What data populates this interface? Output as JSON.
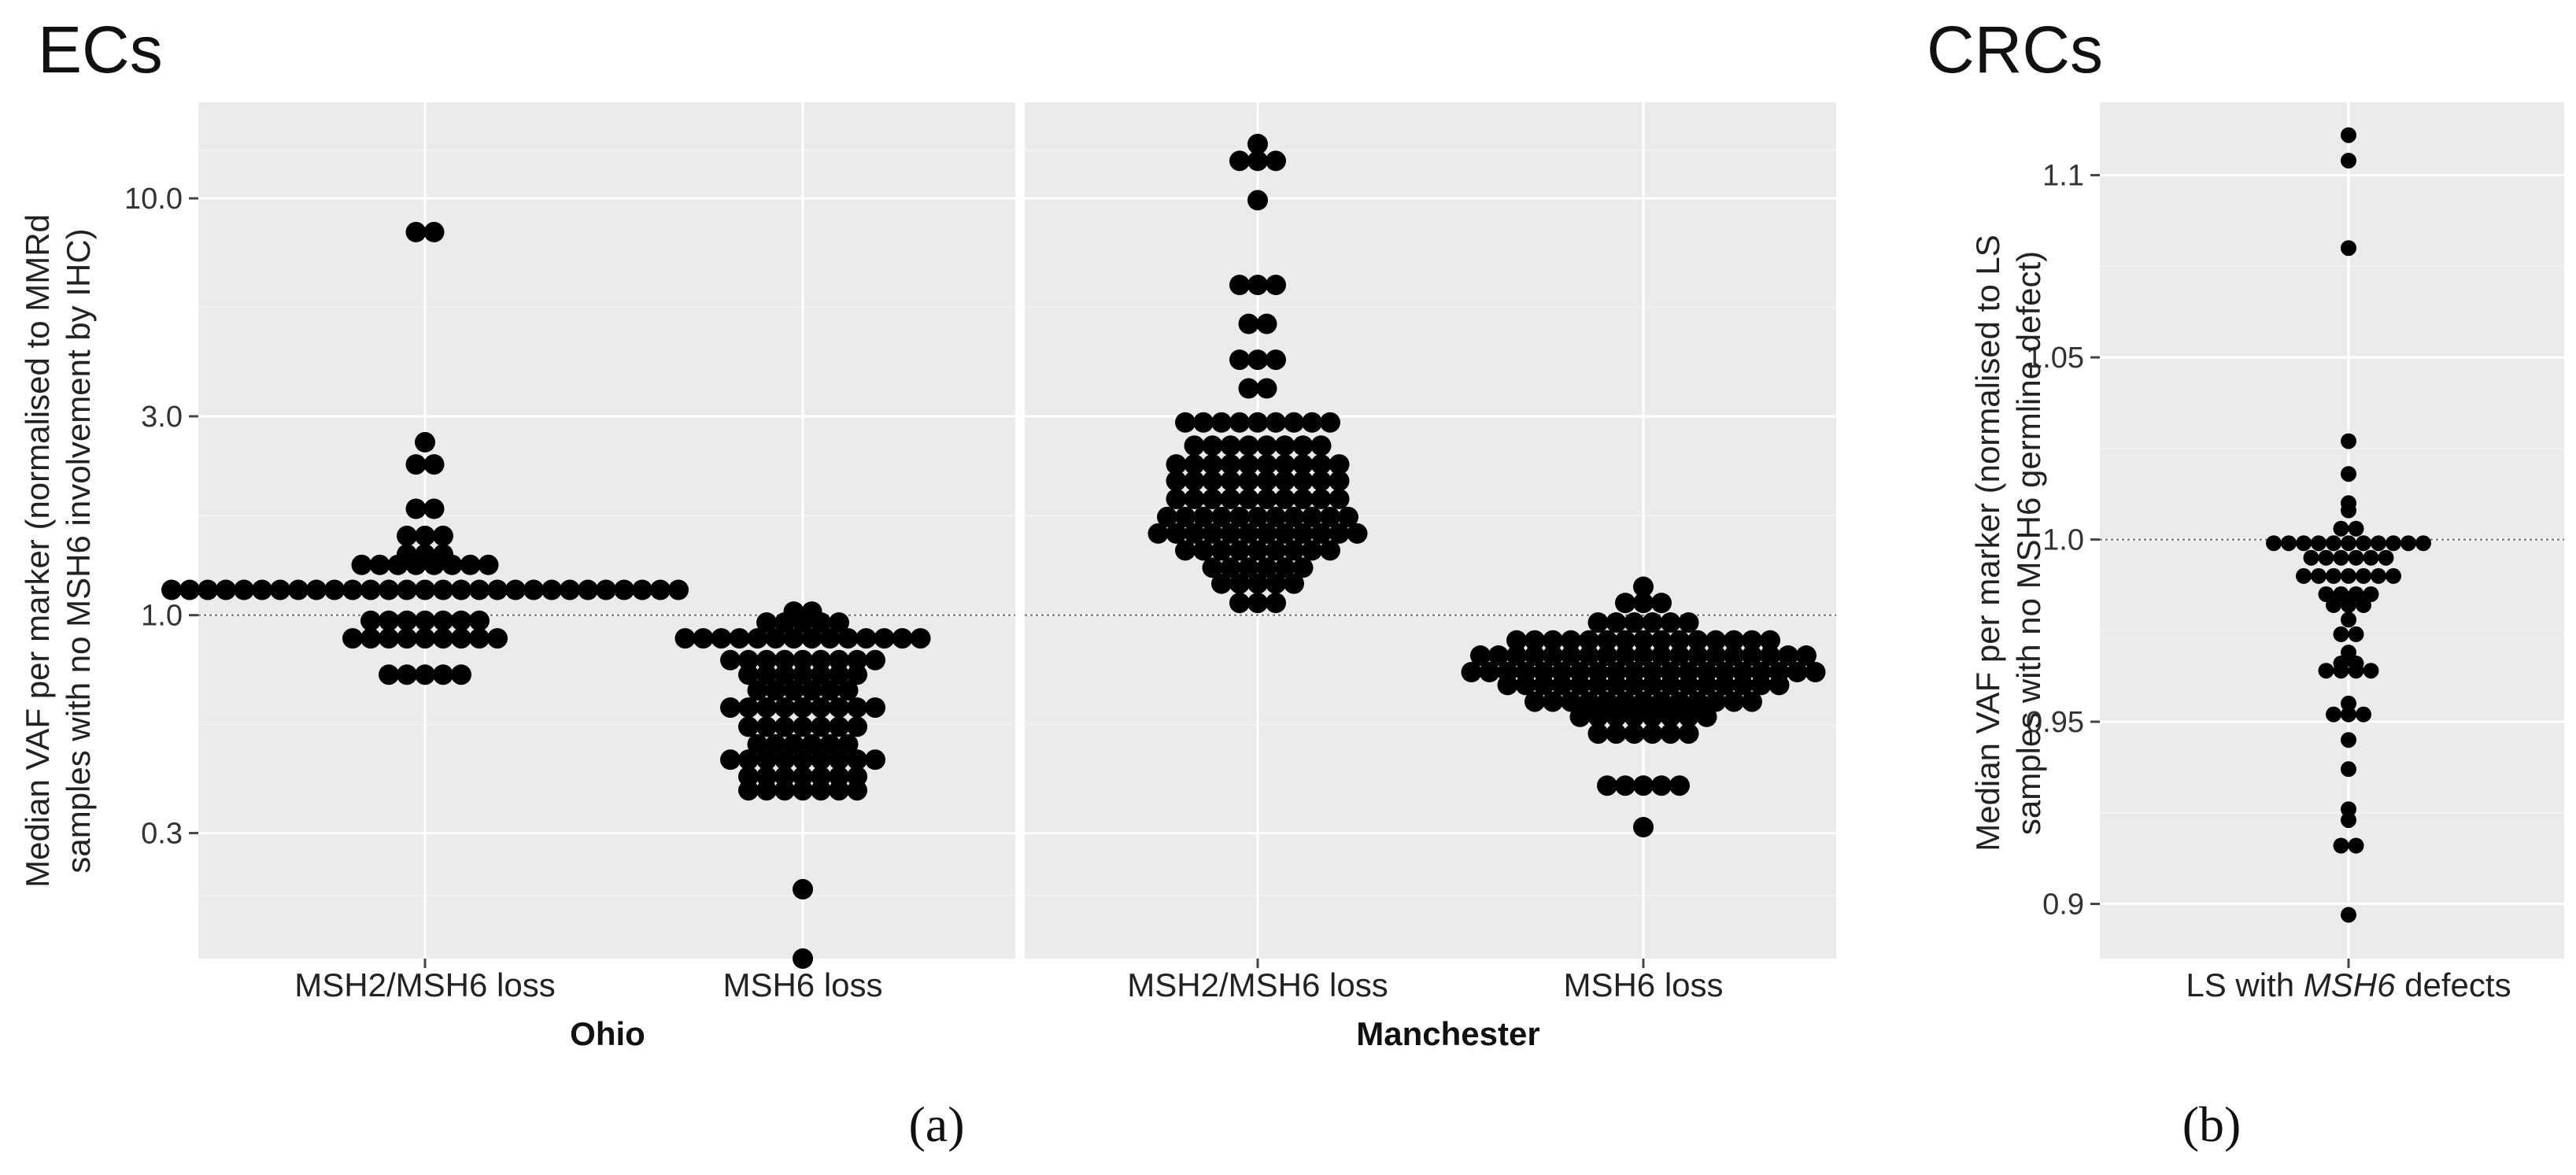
{
  "chart_data": [
    {
      "type": "scatter",
      "subtype": "beeswarm",
      "title": "ECs",
      "subfigure_label": "(a)",
      "ylabel_line1": "Median VAF per marker (normalised to MMRd",
      "ylabel_line2": "samples with no MSH6 involvement by IHC)",
      "y_scale": "log",
      "ylim": [
        0.15,
        17
      ],
      "y_ticks": [
        0.3,
        1.0,
        3.0,
        10.0
      ],
      "y_tick_labels": [
        "0.3",
        "1.0",
        "3.0",
        "10.0"
      ],
      "reference_line": 1.0,
      "grid": true,
      "facets": [
        {
          "name": "Ohio",
          "categories": [
            {
              "label": "MSH2/MSH6 loss",
              "values": [
                8.3,
                8.3,
                2.6,
                2.3,
                2.3,
                1.8,
                1.8,
                1.55,
                1.55,
                1.55,
                1.4,
                1.4,
                1.4,
                1.32,
                1.32,
                1.32,
                1.32,
                1.32,
                1.32,
                1.32,
                1.32,
                1.15,
                1.15,
                1.15,
                1.15,
                1.15,
                1.15,
                1.15,
                1.15,
                1.15,
                1.15,
                1.15,
                1.15,
                1.15,
                1.15,
                1.15,
                1.15,
                1.15,
                1.15,
                1.15,
                1.15,
                1.15,
                1.15,
                1.15,
                1.15,
                1.15,
                1.15,
                1.15,
                1.15,
                1.15,
                0.97,
                0.97,
                0.97,
                0.97,
                0.97,
                0.97,
                0.97,
                0.88,
                0.88,
                0.88,
                0.88,
                0.88,
                0.88,
                0.88,
                0.88,
                0.88,
                0.72,
                0.72,
                0.72,
                0.72,
                0.72
              ]
            },
            {
              "label": "MSH6 loss",
              "values": [
                1.02,
                1.02,
                0.96,
                0.96,
                0.96,
                0.96,
                0.96,
                0.88,
                0.88,
                0.88,
                0.88,
                0.88,
                0.88,
                0.88,
                0.88,
                0.88,
                0.88,
                0.88,
                0.88,
                0.88,
                0.88,
                0.78,
                0.78,
                0.78,
                0.78,
                0.78,
                0.78,
                0.78,
                0.78,
                0.78,
                0.72,
                0.72,
                0.72,
                0.72,
                0.72,
                0.72,
                0.72,
                0.66,
                0.66,
                0.66,
                0.66,
                0.66,
                0.66,
                0.6,
                0.6,
                0.6,
                0.6,
                0.6,
                0.6,
                0.6,
                0.6,
                0.6,
                0.54,
                0.54,
                0.54,
                0.54,
                0.54,
                0.54,
                0.54,
                0.49,
                0.49,
                0.49,
                0.49,
                0.49,
                0.49,
                0.45,
                0.45,
                0.45,
                0.45,
                0.45,
                0.45,
                0.45,
                0.45,
                0.45,
                0.41,
                0.41,
                0.41,
                0.41,
                0.41,
                0.41,
                0.41,
                0.38,
                0.38,
                0.38,
                0.38,
                0.38,
                0.38,
                0.38,
                0.22,
                0.15
              ]
            }
          ]
        },
        {
          "name": "Manchester",
          "categories": [
            {
              "label": "MSH2/MSH6 loss",
              "values": [
                13.5,
                12.3,
                12.3,
                12.3,
                9.9,
                6.2,
                6.2,
                6.2,
                5.0,
                5.0,
                4.1,
                4.1,
                4.1,
                3.5,
                3.5,
                2.9,
                2.9,
                2.9,
                2.9,
                2.9,
                2.9,
                2.9,
                2.9,
                2.9,
                2.55,
                2.55,
                2.55,
                2.55,
                2.55,
                2.55,
                2.55,
                2.55,
                2.3,
                2.3,
                2.3,
                2.3,
                2.3,
                2.3,
                2.3,
                2.3,
                2.3,
                2.3,
                2.1,
                2.1,
                2.1,
                2.1,
                2.1,
                2.1,
                2.1,
                2.1,
                2.1,
                2.1,
                1.9,
                1.9,
                1.9,
                1.9,
                1.9,
                1.9,
                1.9,
                1.9,
                1.9,
                1.9,
                1.72,
                1.72,
                1.72,
                1.72,
                1.72,
                1.72,
                1.72,
                1.72,
                1.72,
                1.72,
                1.72,
                1.57,
                1.57,
                1.57,
                1.57,
                1.57,
                1.57,
                1.57,
                1.57,
                1.57,
                1.57,
                1.57,
                1.57,
                1.43,
                1.43,
                1.43,
                1.43,
                1.43,
                1.43,
                1.43,
                1.43,
                1.43,
                1.3,
                1.3,
                1.3,
                1.3,
                1.3,
                1.3,
                1.19,
                1.19,
                1.19,
                1.19,
                1.19,
                1.07,
                1.07,
                1.07
              ]
            },
            {
              "label": "MSH6 loss",
              "values": [
                1.17,
                1.07,
                1.07,
                1.07,
                0.96,
                0.96,
                0.96,
                0.96,
                0.96,
                0.96,
                0.87,
                0.87,
                0.87,
                0.87,
                0.87,
                0.87,
                0.87,
                0.87,
                0.87,
                0.87,
                0.87,
                0.87,
                0.87,
                0.87,
                0.87,
                0.8,
                0.8,
                0.8,
                0.8,
                0.8,
                0.8,
                0.8,
                0.8,
                0.8,
                0.8,
                0.8,
                0.8,
                0.8,
                0.8,
                0.8,
                0.8,
                0.8,
                0.8,
                0.8,
                0.73,
                0.73,
                0.73,
                0.73,
                0.73,
                0.73,
                0.73,
                0.73,
                0.73,
                0.73,
                0.73,
                0.73,
                0.73,
                0.73,
                0.73,
                0.73,
                0.73,
                0.73,
                0.73,
                0.73,
                0.68,
                0.68,
                0.68,
                0.68,
                0.68,
                0.68,
                0.68,
                0.68,
                0.68,
                0.68,
                0.68,
                0.68,
                0.68,
                0.68,
                0.68,
                0.68,
                0.62,
                0.62,
                0.62,
                0.62,
                0.62,
                0.62,
                0.62,
                0.62,
                0.62,
                0.62,
                0.62,
                0.62,
                0.62,
                0.57,
                0.57,
                0.57,
                0.57,
                0.57,
                0.57,
                0.57,
                0.57,
                0.52,
                0.52,
                0.52,
                0.52,
                0.52,
                0.52,
                0.39,
                0.39,
                0.39,
                0.39,
                0.39,
                0.31
              ]
            }
          ]
        }
      ]
    },
    {
      "type": "scatter",
      "subtype": "beeswarm",
      "title": "CRCs",
      "subfigure_label": "(b)",
      "ylabel_line1": "Median VAF per marker (normalised to LS",
      "ylabel_line2": "samples with no MSH6 germline defect)",
      "y_scale": "linear",
      "ylim": [
        0.885,
        1.12
      ],
      "y_ticks": [
        0.9,
        0.95,
        1.0,
        1.05,
        1.1
      ],
      "y_tick_labels": [
        "0.9",
        "0.95",
        "1.0",
        "1.05",
        "1.1"
      ],
      "reference_line": 1.0,
      "grid": true,
      "categories": [
        {
          "label_prefix": "LS with ",
          "label_italic": "MSH6",
          "label_suffix": " defects",
          "values": [
            1.111,
            1.104,
            1.08,
            1.027,
            1.018,
            1.01,
            1.008,
            1.003,
            1.003,
            0.999,
            0.999,
            0.999,
            0.999,
            0.999,
            0.999,
            0.999,
            0.999,
            0.999,
            0.999,
            0.999,
            0.995,
            0.995,
            0.995,
            0.995,
            0.995,
            0.995,
            0.99,
            0.99,
            0.99,
            0.99,
            0.99,
            0.99,
            0.99,
            0.985,
            0.985,
            0.985,
            0.985,
            0.982,
            0.982,
            0.982,
            0.978,
            0.974,
            0.974,
            0.969,
            0.966,
            0.966,
            0.964,
            0.964,
            0.964,
            0.964,
            0.955,
            0.952,
            0.952,
            0.952,
            0.945,
            0.937,
            0.926,
            0.923,
            0.916,
            0.916,
            0.897
          ]
        }
      ]
    }
  ]
}
